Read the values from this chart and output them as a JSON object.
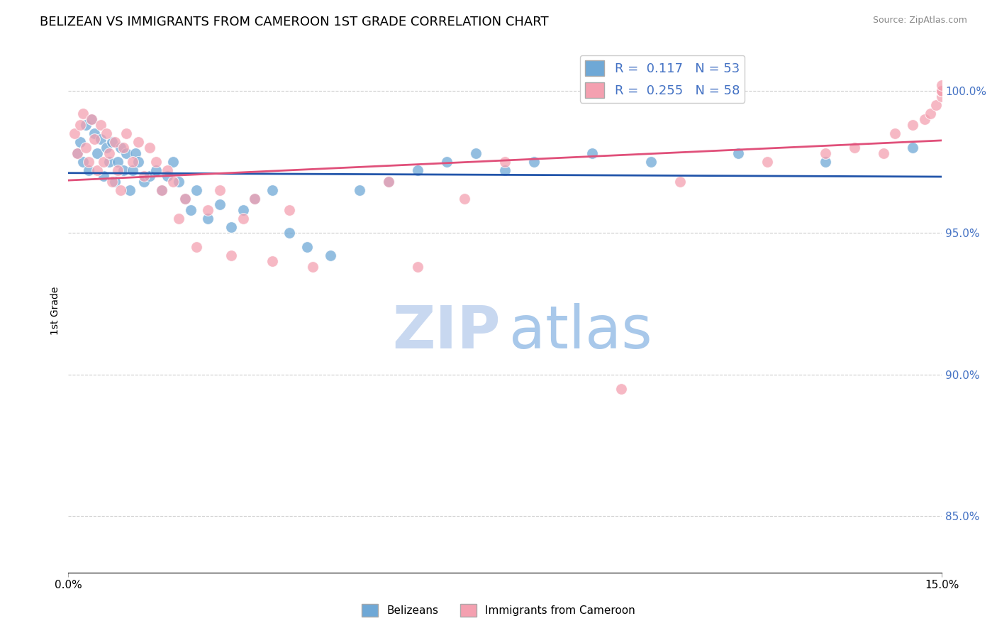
{
  "title": "BELIZEAN VS IMMIGRANTS FROM CAMEROON 1ST GRADE CORRELATION CHART",
  "source": "Source: ZipAtlas.com",
  "ylabel": "1st Grade",
  "xlim": [
    0.0,
    15.0
  ],
  "ylim": [
    83.0,
    101.5
  ],
  "yticks": [
    85.0,
    90.0,
    95.0,
    100.0
  ],
  "ytick_labels": [
    "85.0%",
    "90.0%",
    "95.0%",
    "100.0%"
  ],
  "blue_color": "#6fa8d6",
  "pink_color": "#f4a0b0",
  "blue_line_color": "#2255aa",
  "pink_line_color": "#e0507a",
  "watermark_zip_color": "#c8d8f0",
  "watermark_atlas_color": "#a8c8ea",
  "belizean_x": [
    0.15,
    0.2,
    0.25,
    0.3,
    0.35,
    0.4,
    0.45,
    0.5,
    0.55,
    0.6,
    0.65,
    0.7,
    0.75,
    0.8,
    0.85,
    0.9,
    0.95,
    1.0,
    1.05,
    1.1,
    1.15,
    1.2,
    1.3,
    1.4,
    1.5,
    1.6,
    1.7,
    1.8,
    1.9,
    2.0,
    2.1,
    2.2,
    2.4,
    2.6,
    2.8,
    3.0,
    3.2,
    3.5,
    3.8,
    4.1,
    4.5,
    5.0,
    5.5,
    6.0,
    6.5,
    7.0,
    7.5,
    8.0,
    9.0,
    10.0,
    11.5,
    13.0,
    14.5
  ],
  "belizean_y": [
    97.8,
    98.2,
    97.5,
    98.8,
    97.2,
    99.0,
    98.5,
    97.8,
    98.3,
    97.0,
    98.0,
    97.5,
    98.2,
    96.8,
    97.5,
    98.0,
    97.2,
    97.8,
    96.5,
    97.2,
    97.8,
    97.5,
    96.8,
    97.0,
    97.2,
    96.5,
    97.0,
    97.5,
    96.8,
    96.2,
    95.8,
    96.5,
    95.5,
    96.0,
    95.2,
    95.8,
    96.2,
    96.5,
    95.0,
    94.5,
    94.2,
    96.5,
    96.8,
    97.2,
    97.5,
    97.8,
    97.2,
    97.5,
    97.8,
    97.5,
    97.8,
    97.5,
    98.0
  ],
  "cameroon_x": [
    0.1,
    0.15,
    0.2,
    0.25,
    0.3,
    0.35,
    0.4,
    0.45,
    0.5,
    0.55,
    0.6,
    0.65,
    0.7,
    0.75,
    0.8,
    0.85,
    0.9,
    0.95,
    1.0,
    1.1,
    1.2,
    1.3,
    1.4,
    1.5,
    1.6,
    1.7,
    1.8,
    1.9,
    2.0,
    2.2,
    2.4,
    2.6,
    2.8,
    3.0,
    3.2,
    3.5,
    3.8,
    4.2,
    5.5,
    6.0,
    6.8,
    7.5,
    9.5,
    10.5,
    12.0,
    13.0,
    13.5,
    14.0,
    14.2,
    14.5,
    14.7,
    14.8,
    14.9,
    15.0,
    15.0,
    15.0,
    15.0,
    15.0
  ],
  "cameroon_y": [
    98.5,
    97.8,
    98.8,
    99.2,
    98.0,
    97.5,
    99.0,
    98.3,
    97.2,
    98.8,
    97.5,
    98.5,
    97.8,
    96.8,
    98.2,
    97.2,
    96.5,
    98.0,
    98.5,
    97.5,
    98.2,
    97.0,
    98.0,
    97.5,
    96.5,
    97.2,
    96.8,
    95.5,
    96.2,
    94.5,
    95.8,
    96.5,
    94.2,
    95.5,
    96.2,
    94.0,
    95.8,
    93.8,
    96.8,
    93.8,
    96.2,
    97.5,
    89.5,
    96.8,
    97.5,
    97.8,
    98.0,
    97.8,
    98.5,
    98.8,
    99.0,
    99.2,
    99.5,
    99.8,
    100.0,
    100.0,
    100.0,
    100.2
  ]
}
